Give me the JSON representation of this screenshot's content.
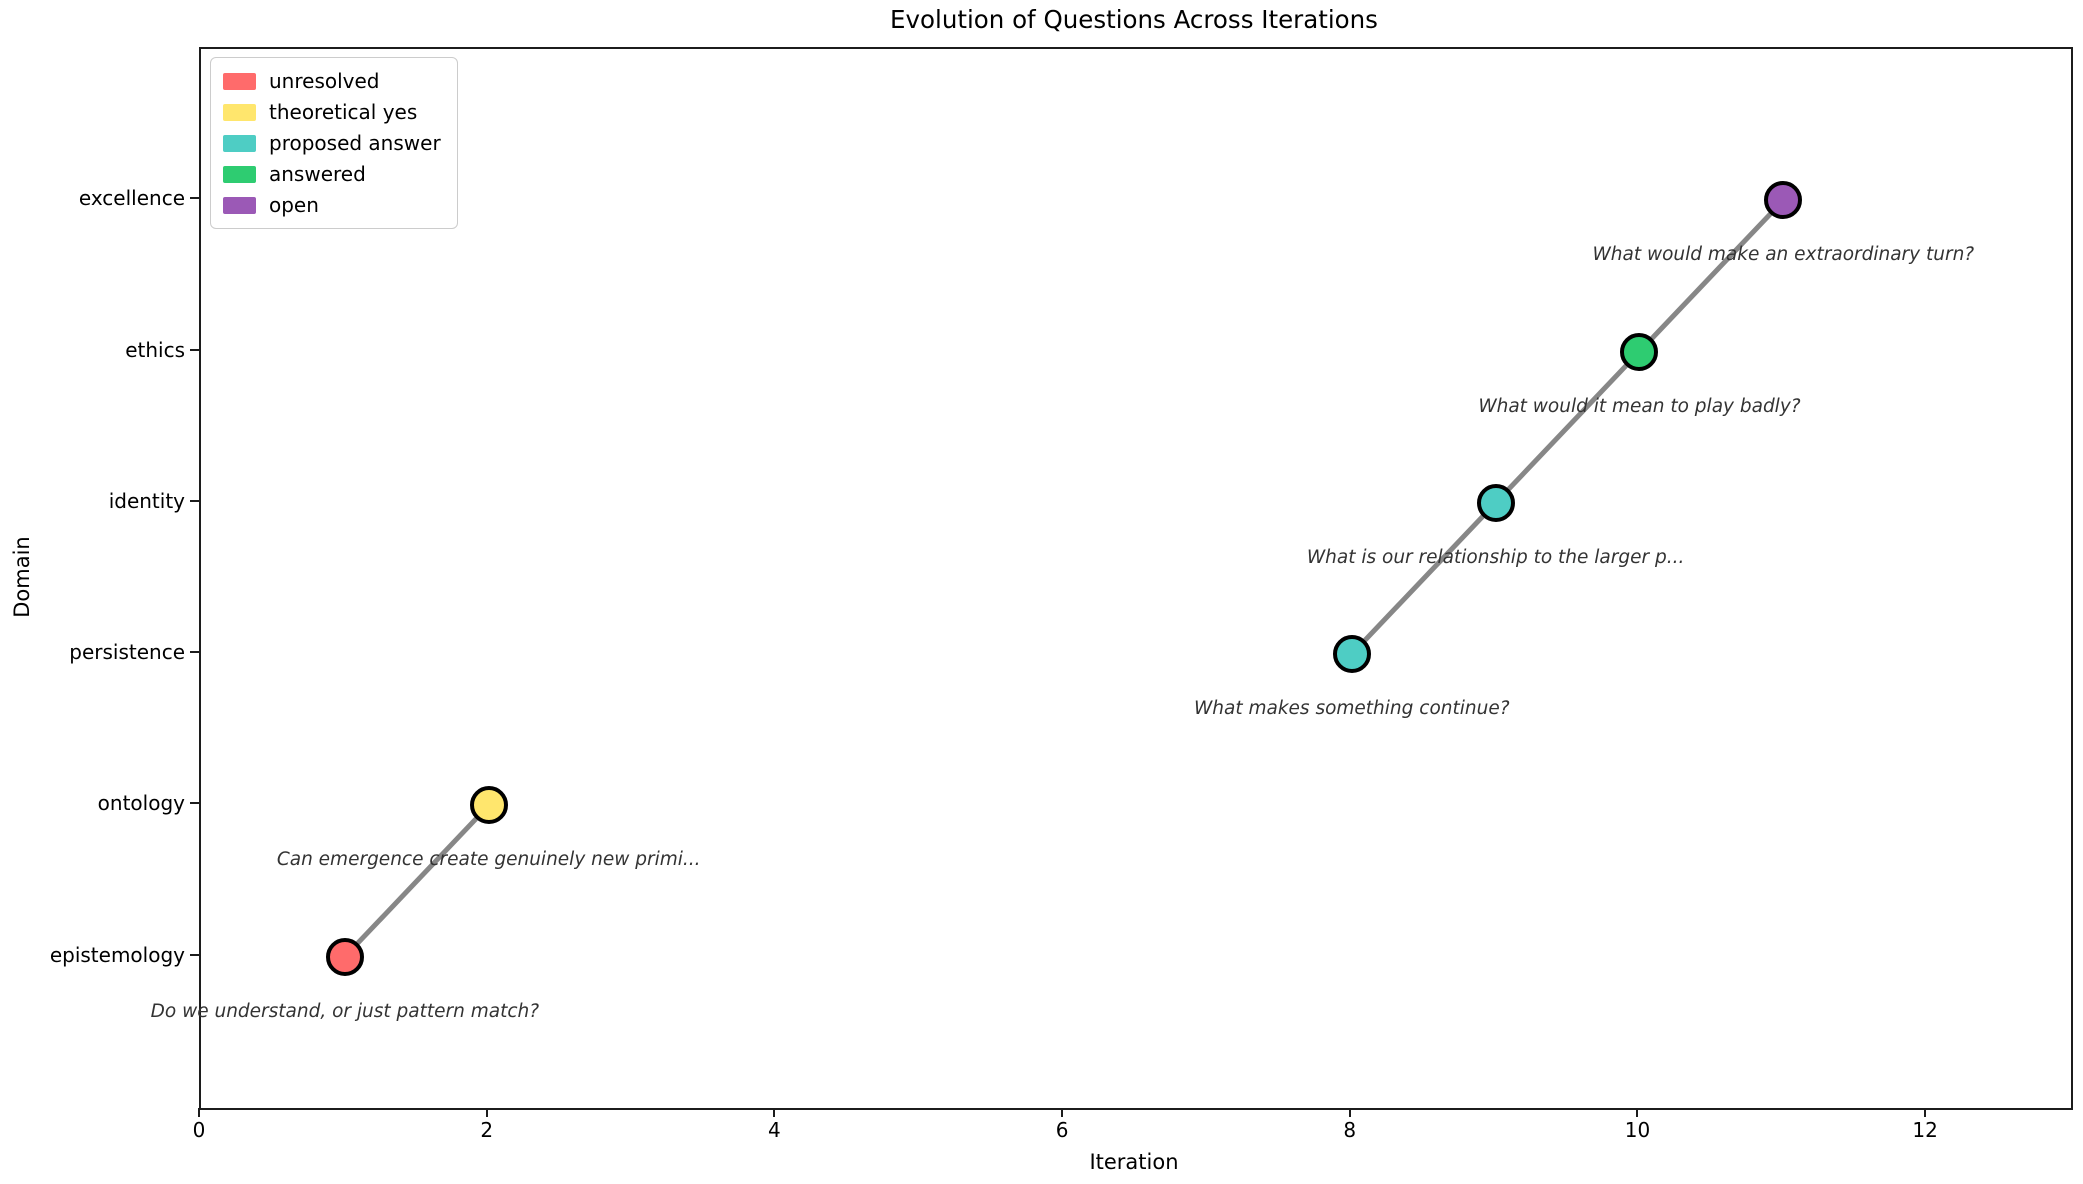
{
  "chart_data": {
    "type": "scatter",
    "title": "Evolution of Questions Across Iterations",
    "xlabel": "Iteration",
    "ylabel": "Domain",
    "xlim": [
      0,
      13
    ],
    "xticks": [
      0,
      2,
      4,
      6,
      8,
      10,
      12
    ],
    "domains": [
      "epistemology",
      "ontology",
      "persistence",
      "identity",
      "ethics",
      "excellence"
    ],
    "grid": "off",
    "legend_position": "upper-left",
    "legend": [
      {
        "label": "unresolved",
        "color": "#FF6B6B"
      },
      {
        "label": "theoretical yes",
        "color": "#FFE66D"
      },
      {
        "label": "proposed answer",
        "color": "#4ECDC4"
      },
      {
        "label": "answered",
        "color": "#2ECC71"
      },
      {
        "label": "open",
        "color": "#9B59B6"
      }
    ],
    "points": [
      {
        "iteration": 1,
        "domain": "epistemology",
        "status": "unresolved",
        "label": "Do we understand, or just pattern match?"
      },
      {
        "iteration": 2,
        "domain": "ontology",
        "status": "theoretical yes",
        "label": "Can emergence create genuinely new primi..."
      },
      {
        "iteration": 8,
        "domain": "persistence",
        "status": "proposed answer",
        "label": "What makes something continue?"
      },
      {
        "iteration": 9,
        "domain": "identity",
        "status": "proposed answer",
        "label": "What is our relationship to the larger p..."
      },
      {
        "iteration": 10,
        "domain": "ethics",
        "status": "answered",
        "label": "What would it mean to play badly?"
      },
      {
        "iteration": 11,
        "domain": "excellence",
        "status": "open",
        "label": "What would make an extraordinary turn?"
      }
    ],
    "line_color": "#878787",
    "marker_edge_color": "#000000",
    "annotation_color": "#333333"
  }
}
